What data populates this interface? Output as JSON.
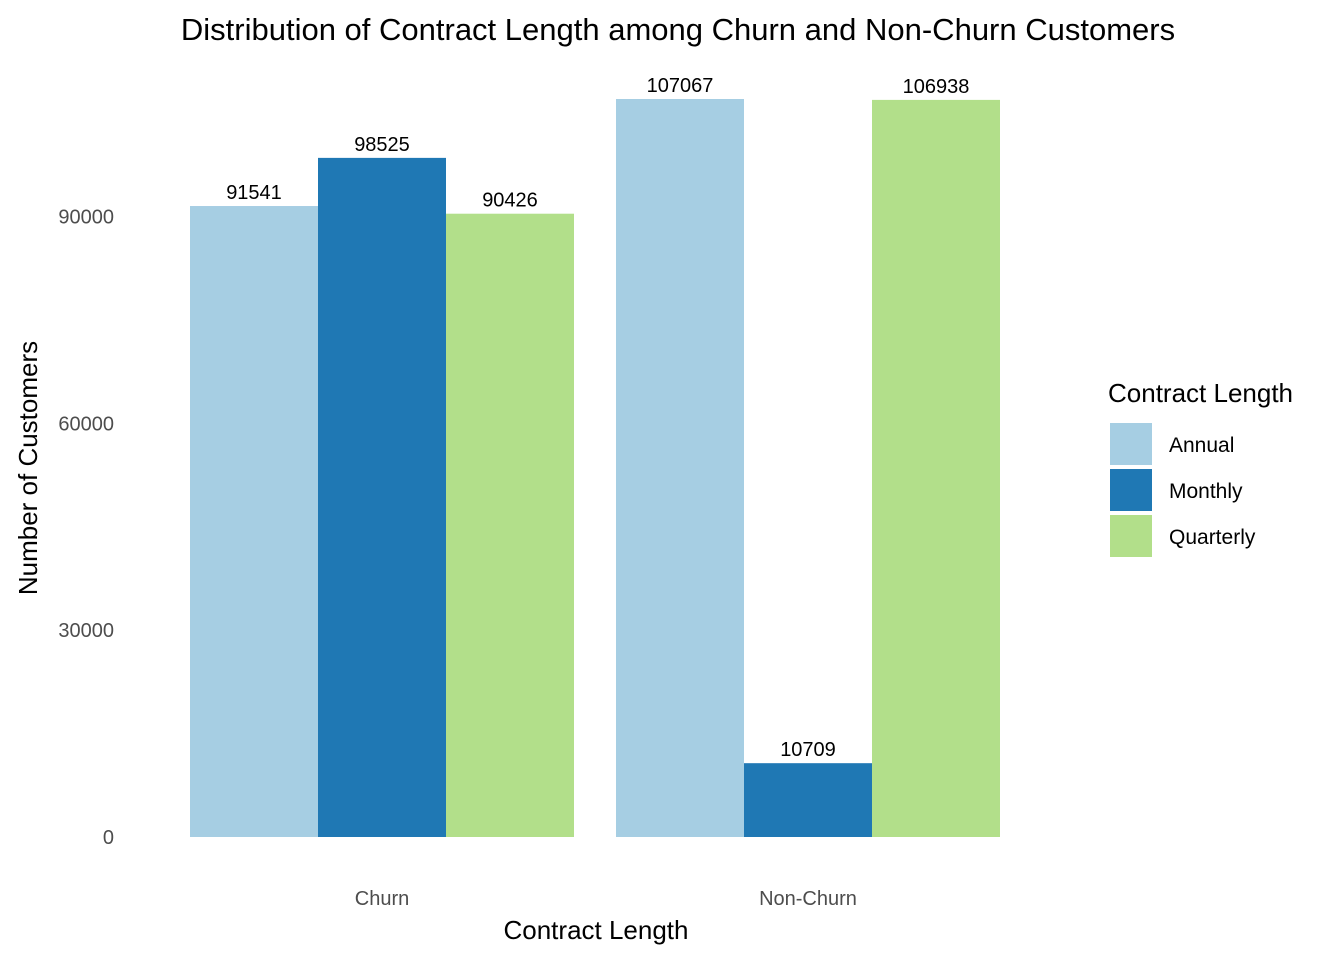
{
  "chart_data": {
    "type": "bar",
    "title": "Distribution of Contract Length among Churn and Non-Churn Customers",
    "xlabel": "Contract Length",
    "ylabel": "Number of Customers",
    "categories": [
      "Churn",
      "Non-Churn"
    ],
    "series": [
      {
        "name": "Annual",
        "color": "#a6cee3",
        "values": [
          91541,
          107067
        ]
      },
      {
        "name": "Monthly",
        "color": "#1f78b4",
        "values": [
          98525,
          10709
        ]
      },
      {
        "name": "Quarterly",
        "color": "#b2df8a",
        "values": [
          90426,
          106938
        ]
      }
    ],
    "yticks": [
      0,
      30000,
      60000,
      90000
    ],
    "ylim": [
      0,
      107067
    ],
    "grid": false,
    "legend": {
      "title": "Contract Length",
      "position": "right"
    }
  }
}
